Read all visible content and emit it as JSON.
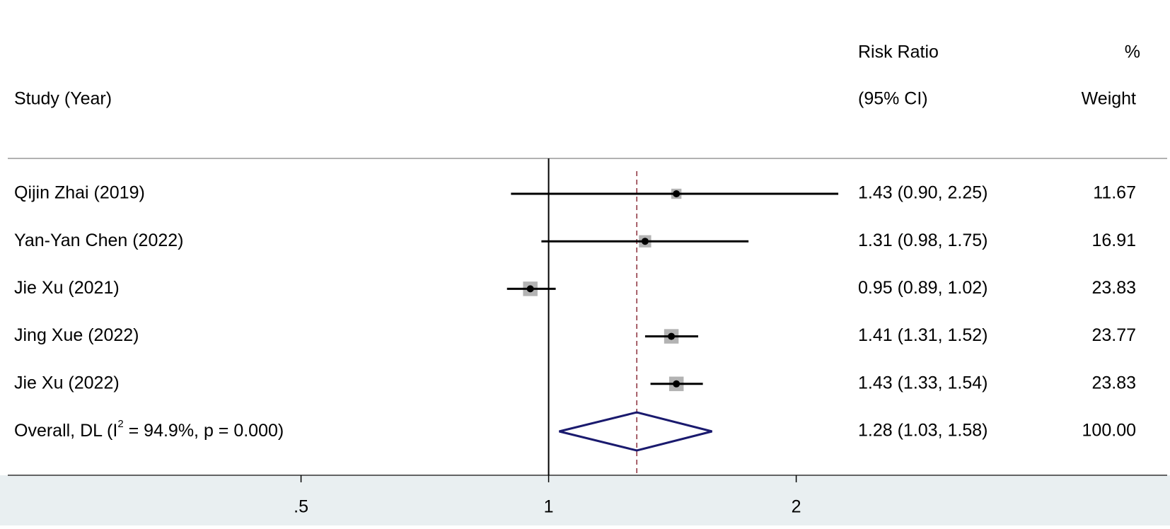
{
  "chart_data": {
    "type": "forest",
    "header": {
      "study": "Study (Year)",
      "effect_top": "Risk Ratio",
      "effect_bottom": "(95% CI)",
      "weight_top": "%",
      "weight_bottom": "Weight"
    },
    "categories": [
      "Qijin Zhai (2019)",
      "Yan-Yan Chen (2022)",
      "Jie Xu (2021)",
      "Jing Xue (2022)",
      "Jie Xu (2022)"
    ],
    "values": [
      1.43,
      1.31,
      0.95,
      1.41,
      1.43
    ],
    "lower": [
      0.9,
      0.98,
      0.89,
      1.31,
      1.33
    ],
    "upper": [
      2.25,
      1.75,
      1.02,
      1.52,
      1.54
    ],
    "value_labels": [
      "1.43 (0.90, 2.25)",
      "1.31 (0.98, 1.75)",
      "0.95 (0.89, 1.02)",
      "1.41 (1.31, 1.52)",
      "1.43 (1.33, 1.54)"
    ],
    "weights": [
      11.67,
      16.91,
      23.83,
      23.77,
      23.83
    ],
    "weight_labels": [
      "11.67",
      "16.91",
      "23.83",
      "23.77",
      "23.83"
    ],
    "overall": {
      "label_parts": [
        "Overall, DL (I",
        "2",
        " = 94.9%, p = 0.000)"
      ],
      "value": 1.28,
      "lower": 1.03,
      "upper": 1.58,
      "value_label": "1.28 (1.03, 1.58)",
      "weight": 100,
      "weight_label": "100.00"
    },
    "null_line": 1,
    "log_scale": true,
    "xlim": [
      0.22,
      5.65
    ],
    "xticks": [
      {
        "value": 0.5,
        "label": ".5"
      },
      1,
      2
    ],
    "square_color": "#b3b3b3",
    "line_color": "#000000",
    "diamond_color": "#1a1a6e",
    "ref_line_color": "#8b2e3a"
  }
}
